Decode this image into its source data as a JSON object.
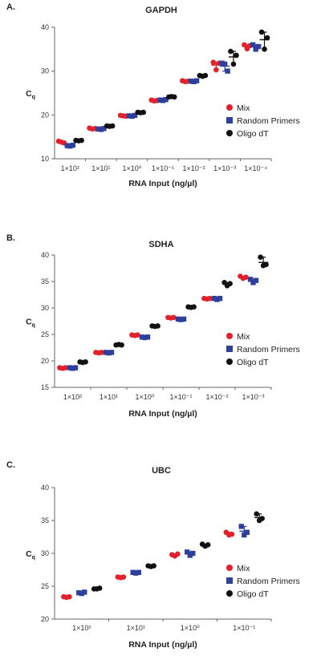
{
  "colors": {
    "mix": "#e4202b",
    "random_primers": "#2e3f9c",
    "oligo_dt": "#111111",
    "axis": "#666666"
  },
  "chart_data": [
    {
      "type": "scatter",
      "panel_label": "A.",
      "title": "GAPDH",
      "xlabel": "RNA Input (ng/µl)",
      "ylabel": "C",
      "ylabel_sub": "q",
      "ylim": [
        10,
        40
      ],
      "yticks": [
        "10",
        "20",
        "30",
        "40"
      ],
      "categories": [
        "1×10²",
        "1×10¹",
        "1×10⁰",
        "1×10⁻¹",
        "1×10⁻²",
        "1×10⁻³",
        "1×10⁻⁴"
      ],
      "legend": [
        "Mix",
        "Random Primers",
        "Oligo dT"
      ],
      "series": [
        {
          "name": "Mix",
          "marker": "circle",
          "values": [
            [
              14.0,
              13.8,
              13.6
            ],
            [
              17.0,
              16.8,
              16.9
            ],
            [
              19.9,
              19.8,
              19.7
            ],
            [
              23.4,
              23.2,
              23.3
            ],
            [
              27.8,
              27.6,
              27.7
            ],
            [
              32.0,
              30.3,
              31.8
            ],
            [
              36.0,
              35.1,
              35.8
            ]
          ]
        },
        {
          "name": "Random Primers",
          "marker": "square",
          "values": [
            [
              13.0,
              12.9,
              13.1
            ],
            [
              16.8,
              16.7,
              16.9
            ],
            [
              19.8,
              19.7,
              19.9
            ],
            [
              23.4,
              23.3,
              23.5
            ],
            [
              27.7,
              27.6,
              27.8
            ],
            [
              31.8,
              31.6,
              30.0
            ],
            [
              36.0,
              35.0,
              35.6
            ]
          ]
        },
        {
          "name": "Oligo dT",
          "marker": "circle",
          "values": [
            [
              14.2,
              14.1,
              14.2
            ],
            [
              17.5,
              17.4,
              17.5
            ],
            [
              20.6,
              20.5,
              20.6
            ],
            [
              24.1,
              24.2,
              24.1
            ],
            [
              29.0,
              28.8,
              29.0
            ],
            [
              34.5,
              31.6,
              33.6
            ],
            [
              38.9,
              35.0,
              37.6
            ]
          ]
        }
      ]
    },
    {
      "type": "scatter",
      "panel_label": "B.",
      "title": "SDHA",
      "xlabel": "RNA Input (ng/µl)",
      "ylabel": "C",
      "ylabel_sub": "q",
      "ylim": [
        15,
        40
      ],
      "yticks": [
        "15",
        "20",
        "25",
        "30",
        "35",
        "40"
      ],
      "categories": [
        "1×10²",
        "1×10¹",
        "1×10⁰",
        "1×10⁻¹",
        "1×10⁻²",
        "1×10⁻³"
      ],
      "legend": [
        "Mix",
        "Random Primers",
        "Oligo dT"
      ],
      "series": [
        {
          "name": "Mix",
          "marker": "circle",
          "values": [
            [
              18.7,
              18.6,
              18.7
            ],
            [
              21.6,
              21.5,
              21.6
            ],
            [
              24.9,
              24.8,
              24.9
            ],
            [
              28.2,
              28.1,
              28.2
            ],
            [
              31.8,
              31.7,
              31.8
            ],
            [
              36.0,
              35.6,
              35.8
            ]
          ]
        },
        {
          "name": "Random Primers",
          "marker": "square",
          "values": [
            [
              18.7,
              18.6,
              18.7
            ],
            [
              21.6,
              21.5,
              21.6
            ],
            [
              24.5,
              24.4,
              24.5
            ],
            [
              27.9,
              27.8,
              27.9
            ],
            [
              31.8,
              31.6,
              31.8
            ],
            [
              35.4,
              34.8,
              35.2
            ]
          ]
        },
        {
          "name": "Oligo dT",
          "marker": "circle",
          "values": [
            [
              19.8,
              19.7,
              19.8
            ],
            [
              23.0,
              23.1,
              23.0
            ],
            [
              26.6,
              26.5,
              26.6
            ],
            [
              30.2,
              30.1,
              30.2
            ],
            [
              34.8,
              34.2,
              34.6
            ],
            [
              39.6,
              38.0,
              38.2
            ]
          ]
        }
      ]
    },
    {
      "type": "scatter",
      "panel_label": "C.",
      "title": "UBC",
      "xlabel": "RNA Input (ng/µl)",
      "ylabel": "C",
      "ylabel_sub": "q",
      "ylim": [
        20,
        40
      ],
      "yticks": [
        "20",
        "25",
        "30",
        "35",
        "40"
      ],
      "categories": [
        "1×10²",
        "1×10¹",
        "1×10⁰",
        "1×10⁻¹"
      ],
      "legend": [
        "Mix",
        "Random Primers",
        "Oligo dT"
      ],
      "series": [
        {
          "name": "Mix",
          "marker": "circle",
          "values": [
            [
              23.4,
              23.3,
              23.4
            ],
            [
              26.4,
              26.3,
              26.4
            ],
            [
              29.8,
              29.6,
              29.9
            ],
            [
              33.2,
              32.8,
              32.9
            ]
          ]
        },
        {
          "name": "Random Primers",
          "marker": "square",
          "values": [
            [
              24.0,
              23.9,
              24.1
            ],
            [
              27.1,
              27.0,
              27.1
            ],
            [
              30.2,
              29.7,
              30.0
            ],
            [
              34.1,
              32.8,
              33.2
            ]
          ]
        },
        {
          "name": "Oligo dT",
          "marker": "circle",
          "values": [
            [
              24.6,
              24.6,
              24.7
            ],
            [
              28.1,
              28.0,
              28.1
            ],
            [
              31.4,
              31.1,
              31.3
            ],
            [
              36.0,
              35.0,
              35.3
            ]
          ]
        }
      ]
    }
  ]
}
